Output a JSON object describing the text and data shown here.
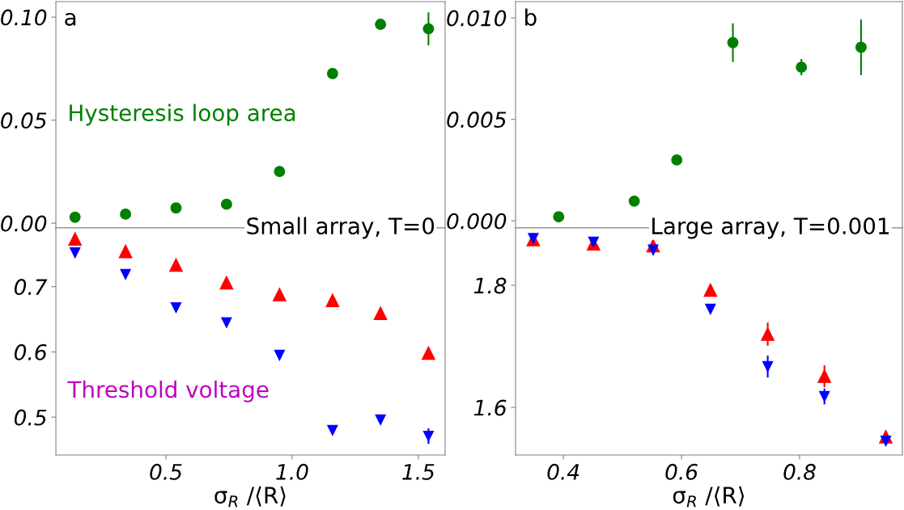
{
  "chart_data": [
    {
      "type": "scatter",
      "annotations": [
        "a",
        "Hysteresis loop area",
        "Small array, T=0"
      ],
      "xlim": [
        0.064,
        1.606
      ],
      "ylim": [
        -0.0023,
        0.1075
      ],
      "yticks": [
        {
          "value": 0.0,
          "label": "0.00"
        },
        {
          "value": 0.05,
          "label": "0.05"
        },
        {
          "value": 0.1,
          "label": "0.10"
        }
      ],
      "tick_labels": "y",
      "x": [
        0.14,
        0.34,
        0.54,
        0.74,
        0.95,
        1.16,
        1.35,
        1.54
      ],
      "series": [
        {
          "color": "#008000",
          "marker": "circle",
          "values": [
            0.0029,
            0.0044,
            0.0074,
            0.0092,
            0.0251,
            0.0726,
            0.0965,
            0.0943
          ],
          "errors": [
            null,
            null,
            null,
            null,
            null,
            0.0013,
            0.001,
            0.008
          ]
        }
      ]
    },
    {
      "type": "scatter",
      "annotations": [
        "Threshold voltage"
      ],
      "xlabel": "σ$_{R}$ /⟨R⟩",
      "xlim": [
        0.064,
        1.606
      ],
      "xticks": [
        0.5,
        {
          "value": 1.0,
          "label": "1.0"
        },
        1.5
      ],
      "ylim": [
        0.442,
        0.79
      ],
      "yticks": [
        0.5,
        0.6,
        0.7
      ],
      "x": [
        0.14,
        0.34,
        0.54,
        0.74,
        0.95,
        1.16,
        1.35,
        1.54
      ],
      "series": [
        {
          "color": "#ff0000",
          "marker": "triangle",
          "values": [
            0.773,
            0.754,
            0.733,
            0.706,
            0.688,
            0.679,
            0.659,
            0.598
          ],
          "errors": [
            null,
            null,
            null,
            null,
            null,
            null,
            null,
            0.005
          ]
        },
        {
          "color": "#0000ff",
          "marker": "triangle_down",
          "values": [
            0.752,
            0.719,
            0.668,
            0.645,
            0.595,
            0.48,
            0.496,
            0.471
          ],
          "errors": [
            null,
            null,
            null,
            null,
            null,
            null,
            null,
            0.012
          ]
        }
      ]
    },
    {
      "type": "scatter",
      "annotations": [
        "b",
        "Large array, T=0.001"
      ],
      "xlim": [
        0.319,
        0.974
      ],
      "ylim": [
        -0.00035,
        0.0108
      ],
      "yticks": [
        {
          "value": 0.0,
          "label": "0.000"
        },
        {
          "value": 0.005,
          "label": "0.005"
        },
        {
          "value": 0.01,
          "label": "0.010"
        }
      ],
      "tick_labels": "y",
      "x": [
        0.392,
        0.52,
        0.592,
        0.687,
        0.803,
        0.904
      ],
      "series": [
        {
          "color": "#008000",
          "marker": "circle",
          "values": [
            0.0002,
            0.00097,
            0.003,
            0.00878,
            0.00757,
            0.00855
          ],
          "errors": [
            null,
            null,
            0.00015,
            0.00095,
            0.0004,
            0.00137
          ]
        }
      ]
    },
    {
      "type": "scatter",
      "xlabel": "σ$_{R}$ /⟨R⟩",
      "xlim": [
        0.319,
        0.974
      ],
      "xticks": [
        0.4,
        0.6,
        0.8
      ],
      "ylim": [
        1.522,
        1.894
      ],
      "yticks": [
        1.6,
        1.8
      ],
      "x": [
        0.349,
        0.451,
        0.552,
        0.649,
        0.746,
        0.842,
        0.946
      ],
      "series": [
        {
          "color": "#ff0000",
          "marker": "triangle",
          "values": [
            1.875,
            1.868,
            1.865,
            1.792,
            1.72,
            1.651,
            1.552
          ],
          "errors": [
            null,
            null,
            null,
            null,
            0.019,
            0.018,
            null
          ]
        },
        {
          "color": "#0000ff",
          "marker": "triangle_down",
          "values": [
            1.877,
            1.871,
            1.858,
            1.761,
            1.667,
            1.618,
            1.545
          ],
          "errors": [
            null,
            null,
            null,
            null,
            0.018,
            0.013,
            null
          ]
        }
      ]
    }
  ]
}
